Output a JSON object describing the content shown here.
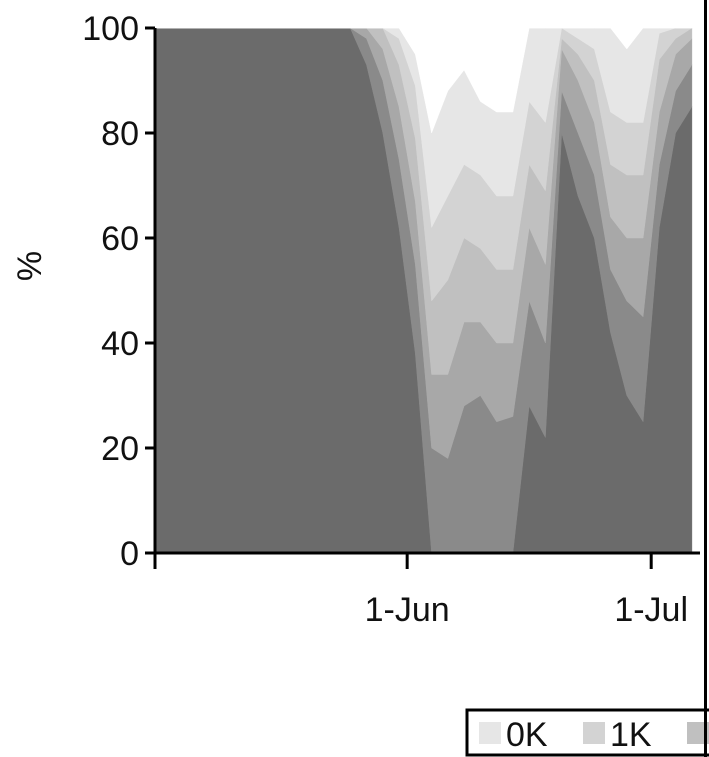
{
  "chart_data": {
    "type": "area",
    "stacked": true,
    "percent_stacked": true,
    "ylabel": "%",
    "ylim": [
      0,
      100
    ],
    "y_ticks": [
      0,
      20,
      40,
      60,
      80,
      100
    ],
    "x_ticks": [
      {
        "date": "2014-06-01",
        "label": "1-Jun"
      },
      {
        "date": "2014-07-01",
        "label": "1-Jul"
      }
    ],
    "xlim": [
      "2014-05-01",
      "2014-07-07"
    ],
    "x": [
      "2014-05-01",
      "2014-05-03",
      "2014-05-05",
      "2014-05-07",
      "2014-05-09",
      "2014-05-11",
      "2014-05-13",
      "2014-05-15",
      "2014-05-17",
      "2014-05-19",
      "2014-05-21",
      "2014-05-23",
      "2014-05-25",
      "2014-05-27",
      "2014-05-29",
      "2014-05-31",
      "2014-06-02",
      "2014-06-04",
      "2014-06-06",
      "2014-06-08",
      "2014-06-10",
      "2014-06-12",
      "2014-06-14",
      "2014-06-16",
      "2014-06-18",
      "2014-06-20",
      "2014-06-22",
      "2014-06-24",
      "2014-06-26",
      "2014-06-28",
      "2014-06-30",
      "2014-07-02",
      "2014-07-04",
      "2014-07-06"
    ],
    "series": [
      {
        "color": "#6b6b6b",
        "values": [
          100,
          100,
          100,
          100,
          100,
          100,
          100,
          100,
          100,
          100,
          100,
          100,
          100,
          93,
          80,
          62,
          38,
          0,
          0,
          0,
          0,
          0,
          0,
          28,
          22,
          80,
          68,
          60,
          42,
          30,
          25,
          62,
          80,
          85
        ]
      },
      {
        "color": "#8a8a8a",
        "values": [
          0,
          0,
          0,
          0,
          0,
          0,
          0,
          0,
          0,
          0,
          0,
          0,
          0,
          5,
          10,
          13,
          17,
          20,
          18,
          28,
          30,
          25,
          26,
          20,
          18,
          8,
          12,
          12,
          12,
          18,
          20,
          12,
          8,
          8
        ]
      },
      {
        "color": "#a8a8a8",
        "values": [
          0,
          0,
          0,
          0,
          0,
          0,
          0,
          0,
          0,
          0,
          0,
          0,
          0,
          2,
          6,
          10,
          12,
          14,
          16,
          16,
          14,
          15,
          14,
          14,
          15,
          8,
          10,
          10,
          10,
          12,
          15,
          10,
          7,
          5
        ]
      },
      {
        "color": "#c0c0c0",
        "values": [
          0,
          0,
          0,
          0,
          0,
          0,
          0,
          0,
          0,
          0,
          0,
          0,
          0,
          0,
          4,
          8,
          12,
          14,
          18,
          16,
          14,
          14,
          14,
          12,
          14,
          2,
          5,
          8,
          10,
          12,
          12,
          10,
          3,
          2
        ]
      },
      {
        "color": "#d3d3d3",
        "values": [
          0,
          0,
          0,
          0,
          0,
          0,
          0,
          0,
          0,
          0,
          0,
          0,
          0,
          0,
          0,
          5,
          10,
          14,
          16,
          14,
          14,
          14,
          14,
          12,
          13,
          2,
          3,
          6,
          10,
          10,
          10,
          5,
          2,
          0
        ]
      },
      {
        "color": "#e6e6e6",
        "values": [
          0,
          0,
          0,
          0,
          0,
          0,
          0,
          0,
          0,
          0,
          0,
          0,
          0,
          0,
          0,
          2,
          6,
          18,
          20,
          18,
          14,
          16,
          16,
          14,
          18,
          0,
          2,
          4,
          16,
          14,
          18,
          1,
          0,
          0
        ]
      },
      {
        "color": "#ffffff",
        "values": [
          0,
          0,
          0,
          0,
          0,
          0,
          0,
          0,
          0,
          0,
          0,
          0,
          0,
          0,
          0,
          0,
          5,
          20,
          12,
          8,
          14,
          16,
          16,
          0,
          0,
          0,
          0,
          0,
          0,
          4,
          0,
          0,
          0,
          0
        ]
      }
    ],
    "legend": {
      "position": "bottom-right",
      "entries": [
        {
          "label": "0K",
          "color": "#e6e6e6"
        },
        {
          "label": "1K",
          "color": "#d3d3d3"
        },
        {
          "label": "",
          "color": "#c0c0c0"
        }
      ]
    },
    "grid": false
  }
}
